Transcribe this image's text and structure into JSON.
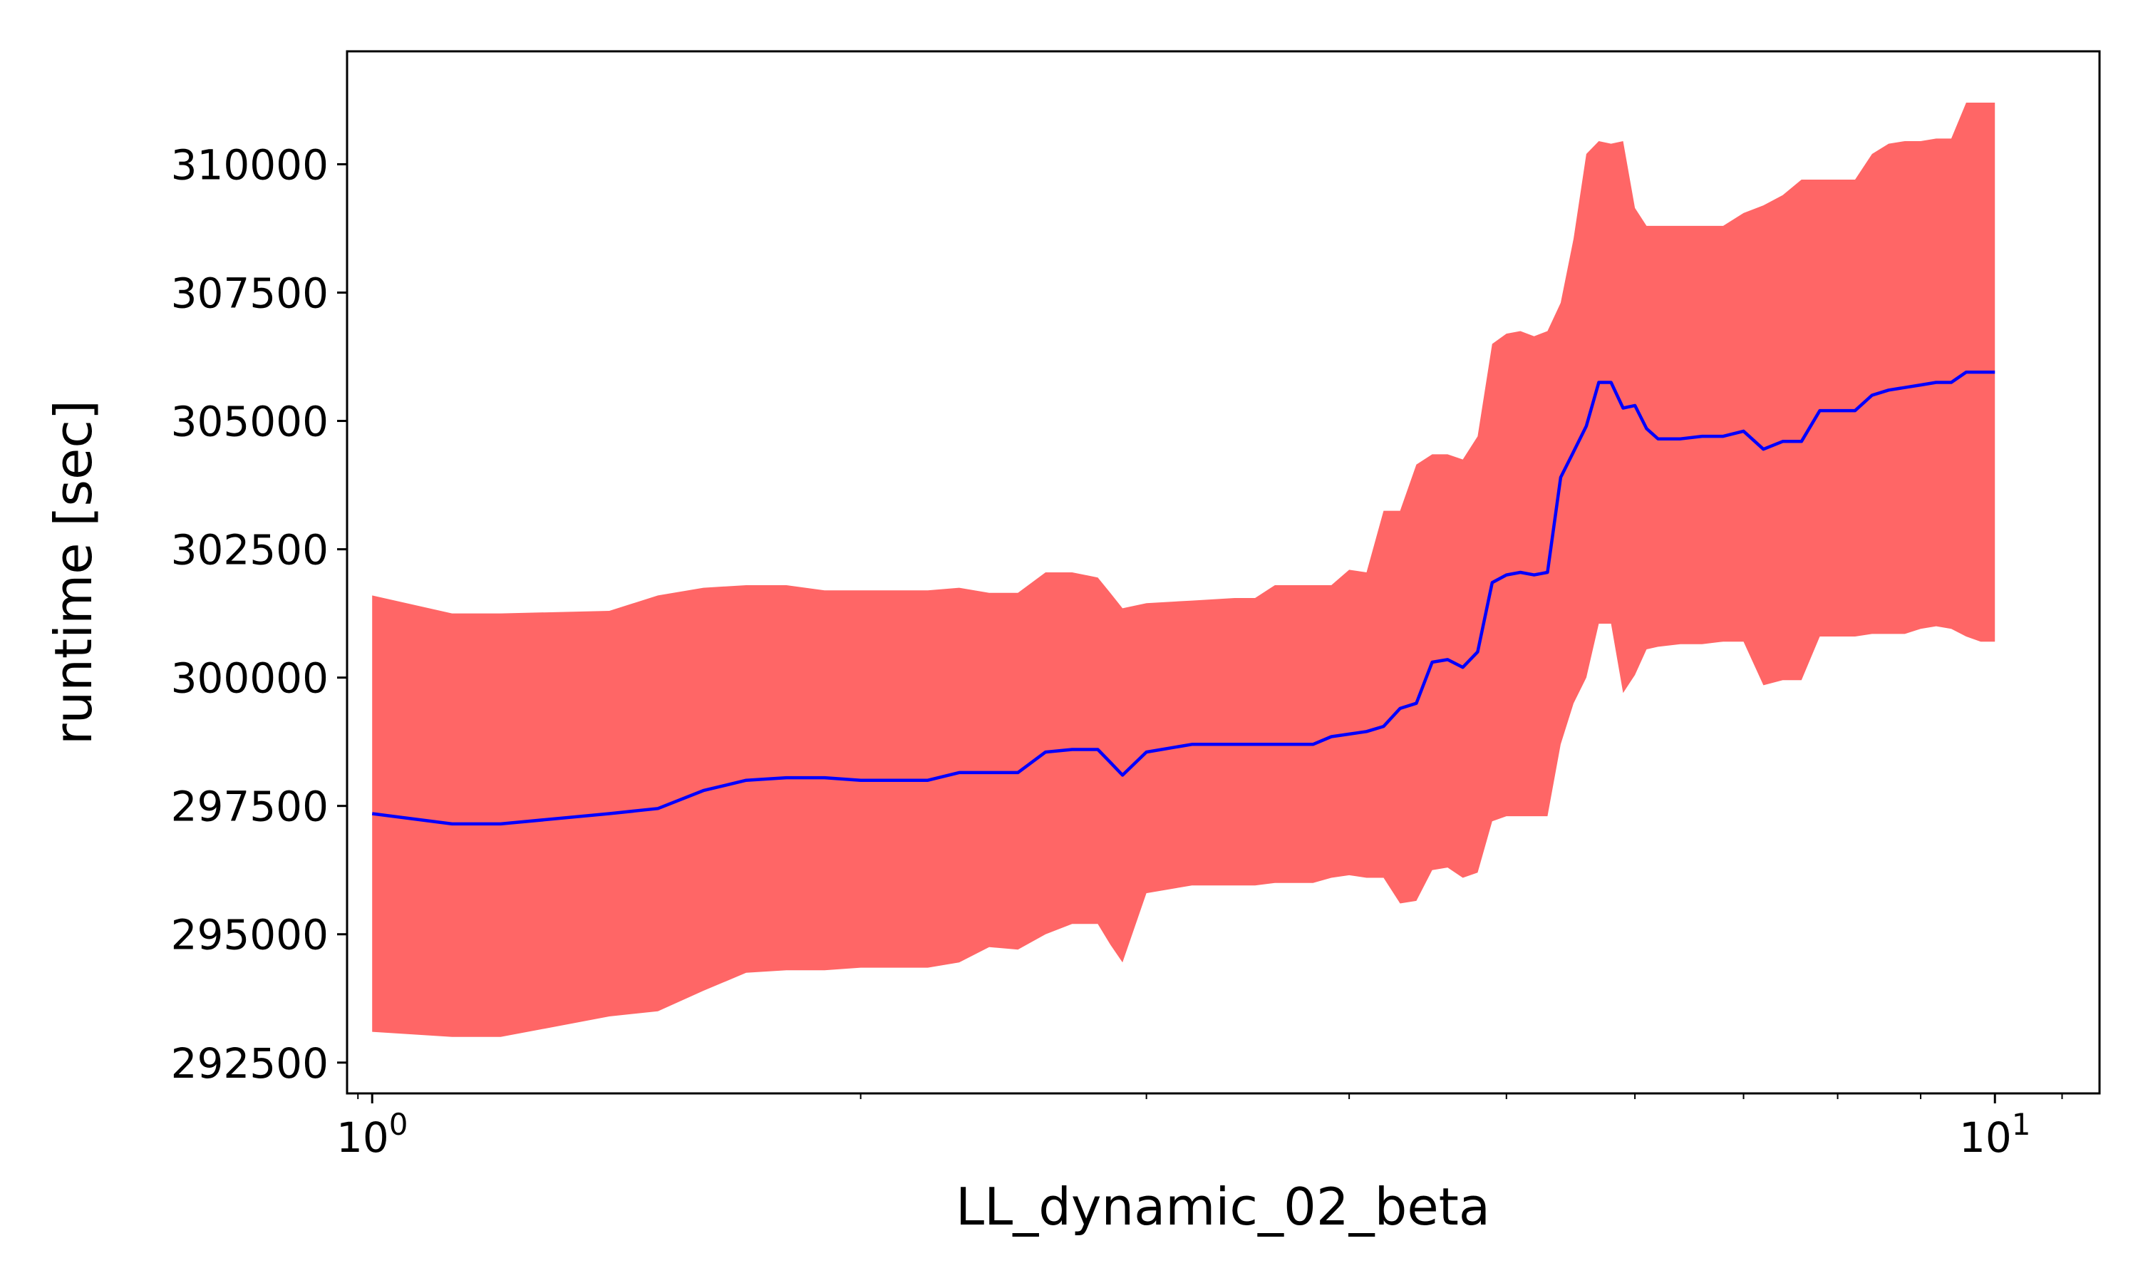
{
  "chart_data": {
    "type": "line",
    "xlabel": "LL_dynamic_02_beta",
    "ylabel": "runtime [sec]",
    "xscale": "log",
    "xlim": [
      0.965,
      11.6
    ],
    "ylim": [
      291900,
      312200
    ],
    "grid": false,
    "x_ticks": [
      {
        "value": 1,
        "base": "10",
        "exp": "0"
      },
      {
        "value": 10,
        "base": "10",
        "exp": "1"
      }
    ],
    "y_ticks": [
      292500,
      295000,
      297500,
      300000,
      302500,
      305000,
      307500,
      310000
    ],
    "y_tick_labels": [
      "292500",
      "295000",
      "297500",
      "300000",
      "302500",
      "305000",
      "307500",
      "310000"
    ],
    "colors": {
      "mean_line": "#0000ff",
      "band": "#ff6666",
      "axes": "#000000"
    },
    "series": [
      {
        "role": "mean",
        "x": [
          1.0,
          1.12,
          1.2,
          1.4,
          1.5,
          1.6,
          1.7,
          1.8,
          1.9,
          2.0,
          2.2,
          2.3,
          2.4,
          2.5,
          2.6,
          2.7,
          2.8,
          2.85,
          2.9,
          3.0,
          3.2,
          3.4,
          3.5,
          3.6,
          3.8,
          3.9,
          4.0,
          4.1,
          4.2,
          4.3,
          4.4,
          4.5,
          4.6,
          4.7,
          4.8,
          4.9,
          5.0,
          5.1,
          5.2,
          5.3,
          5.4,
          5.5,
          5.6,
          5.7,
          5.8,
          5.9,
          6.0,
          6.1,
          6.2,
          6.4,
          6.6,
          6.8,
          7.0,
          7.2,
          7.4,
          7.6,
          7.8,
          8.0,
          8.2,
          8.4,
          8.6,
          8.8,
          9.0,
          9.2,
          9.4,
          9.6,
          9.8,
          10.0
        ],
        "y": [
          297350,
          297150,
          297150,
          297350,
          297450,
          297800,
          298000,
          298050,
          298050,
          298000,
          298000,
          298150,
          298150,
          298150,
          298550,
          298600,
          298600,
          298350,
          298100,
          298550,
          298700,
          298700,
          298700,
          298700,
          298700,
          298850,
          298900,
          298950,
          299050,
          299400,
          299500,
          300300,
          300350,
          300200,
          300500,
          301850,
          302000,
          302050,
          302000,
          302050,
          303900,
          304400,
          304900,
          305750,
          305750,
          305250,
          305300,
          304850,
          304650,
          304650,
          304700,
          304700,
          304800,
          304450,
          304600,
          304600,
          305200,
          305200,
          305200,
          305500,
          305600,
          305650,
          305700,
          305750,
          305750,
          305950,
          305950,
          305950
        ]
      },
      {
        "role": "upper",
        "x": [
          1.0,
          1.12,
          1.2,
          1.4,
          1.5,
          1.6,
          1.7,
          1.8,
          1.9,
          2.0,
          2.2,
          2.3,
          2.4,
          2.5,
          2.6,
          2.7,
          2.8,
          2.85,
          2.9,
          3.0,
          3.2,
          3.4,
          3.5,
          3.6,
          3.8,
          3.9,
          4.0,
          4.1,
          4.2,
          4.3,
          4.4,
          4.5,
          4.6,
          4.7,
          4.8,
          4.9,
          5.0,
          5.1,
          5.2,
          5.3,
          5.4,
          5.5,
          5.6,
          5.7,
          5.8,
          5.9,
          6.0,
          6.1,
          6.2,
          6.4,
          6.6,
          6.8,
          7.0,
          7.2,
          7.4,
          7.6,
          7.8,
          8.0,
          8.2,
          8.4,
          8.6,
          8.8,
          9.0,
          9.2,
          9.4,
          9.6,
          9.8,
          10.0
        ],
        "y": [
          301600,
          301250,
          301250,
          301300,
          301600,
          301750,
          301800,
          301800,
          301700,
          301700,
          301700,
          301750,
          301650,
          301650,
          302050,
          302050,
          301950,
          301650,
          301350,
          301450,
          301500,
          301550,
          301550,
          301800,
          301800,
          301800,
          302100,
          302050,
          303250,
          303250,
          304150,
          304350,
          304350,
          304250,
          304700,
          306500,
          306700,
          306750,
          306650,
          306750,
          307300,
          308550,
          310200,
          310450,
          310400,
          310450,
          309150,
          308800,
          308800,
          308800,
          308800,
          308800,
          309050,
          309200,
          309400,
          309700,
          309700,
          309700,
          309700,
          310200,
          310400,
          310450,
          310450,
          310500,
          310500,
          311200,
          311200,
          311200
        ]
      },
      {
        "role": "lower",
        "x": [
          1.0,
          1.12,
          1.2,
          1.4,
          1.5,
          1.6,
          1.7,
          1.8,
          1.9,
          2.0,
          2.2,
          2.3,
          2.4,
          2.5,
          2.6,
          2.7,
          2.8,
          2.85,
          2.9,
          3.0,
          3.2,
          3.4,
          3.5,
          3.6,
          3.8,
          3.9,
          4.0,
          4.1,
          4.2,
          4.3,
          4.4,
          4.5,
          4.6,
          4.7,
          4.8,
          4.9,
          5.0,
          5.1,
          5.2,
          5.3,
          5.4,
          5.5,
          5.6,
          5.7,
          5.8,
          5.9,
          6.0,
          6.1,
          6.2,
          6.4,
          6.6,
          6.8,
          7.0,
          7.2,
          7.4,
          7.6,
          7.8,
          8.0,
          8.2,
          8.4,
          8.6,
          8.8,
          9.0,
          9.2,
          9.4,
          9.6,
          9.8,
          10.0
        ],
        "y": [
          293100,
          293000,
          293000,
          293400,
          293500,
          293900,
          294250,
          294300,
          294300,
          294350,
          294350,
          294450,
          294750,
          294700,
          295000,
          295200,
          295200,
          294800,
          294450,
          295800,
          295950,
          295950,
          295950,
          296000,
          296000,
          296100,
          296150,
          296100,
          296100,
          295600,
          295650,
          296250,
          296300,
          296100,
          296200,
          297200,
          297300,
          297300,
          297300,
          297300,
          298700,
          299500,
          300000,
          301050,
          301050,
          299700,
          300050,
          300550,
          300600,
          300650,
          300650,
          300700,
          300700,
          299850,
          299950,
          299950,
          300800,
          300800,
          300800,
          300850,
          300850,
          300850,
          300950,
          301000,
          300950,
          300800,
          300700,
          300700
        ]
      }
    ]
  }
}
